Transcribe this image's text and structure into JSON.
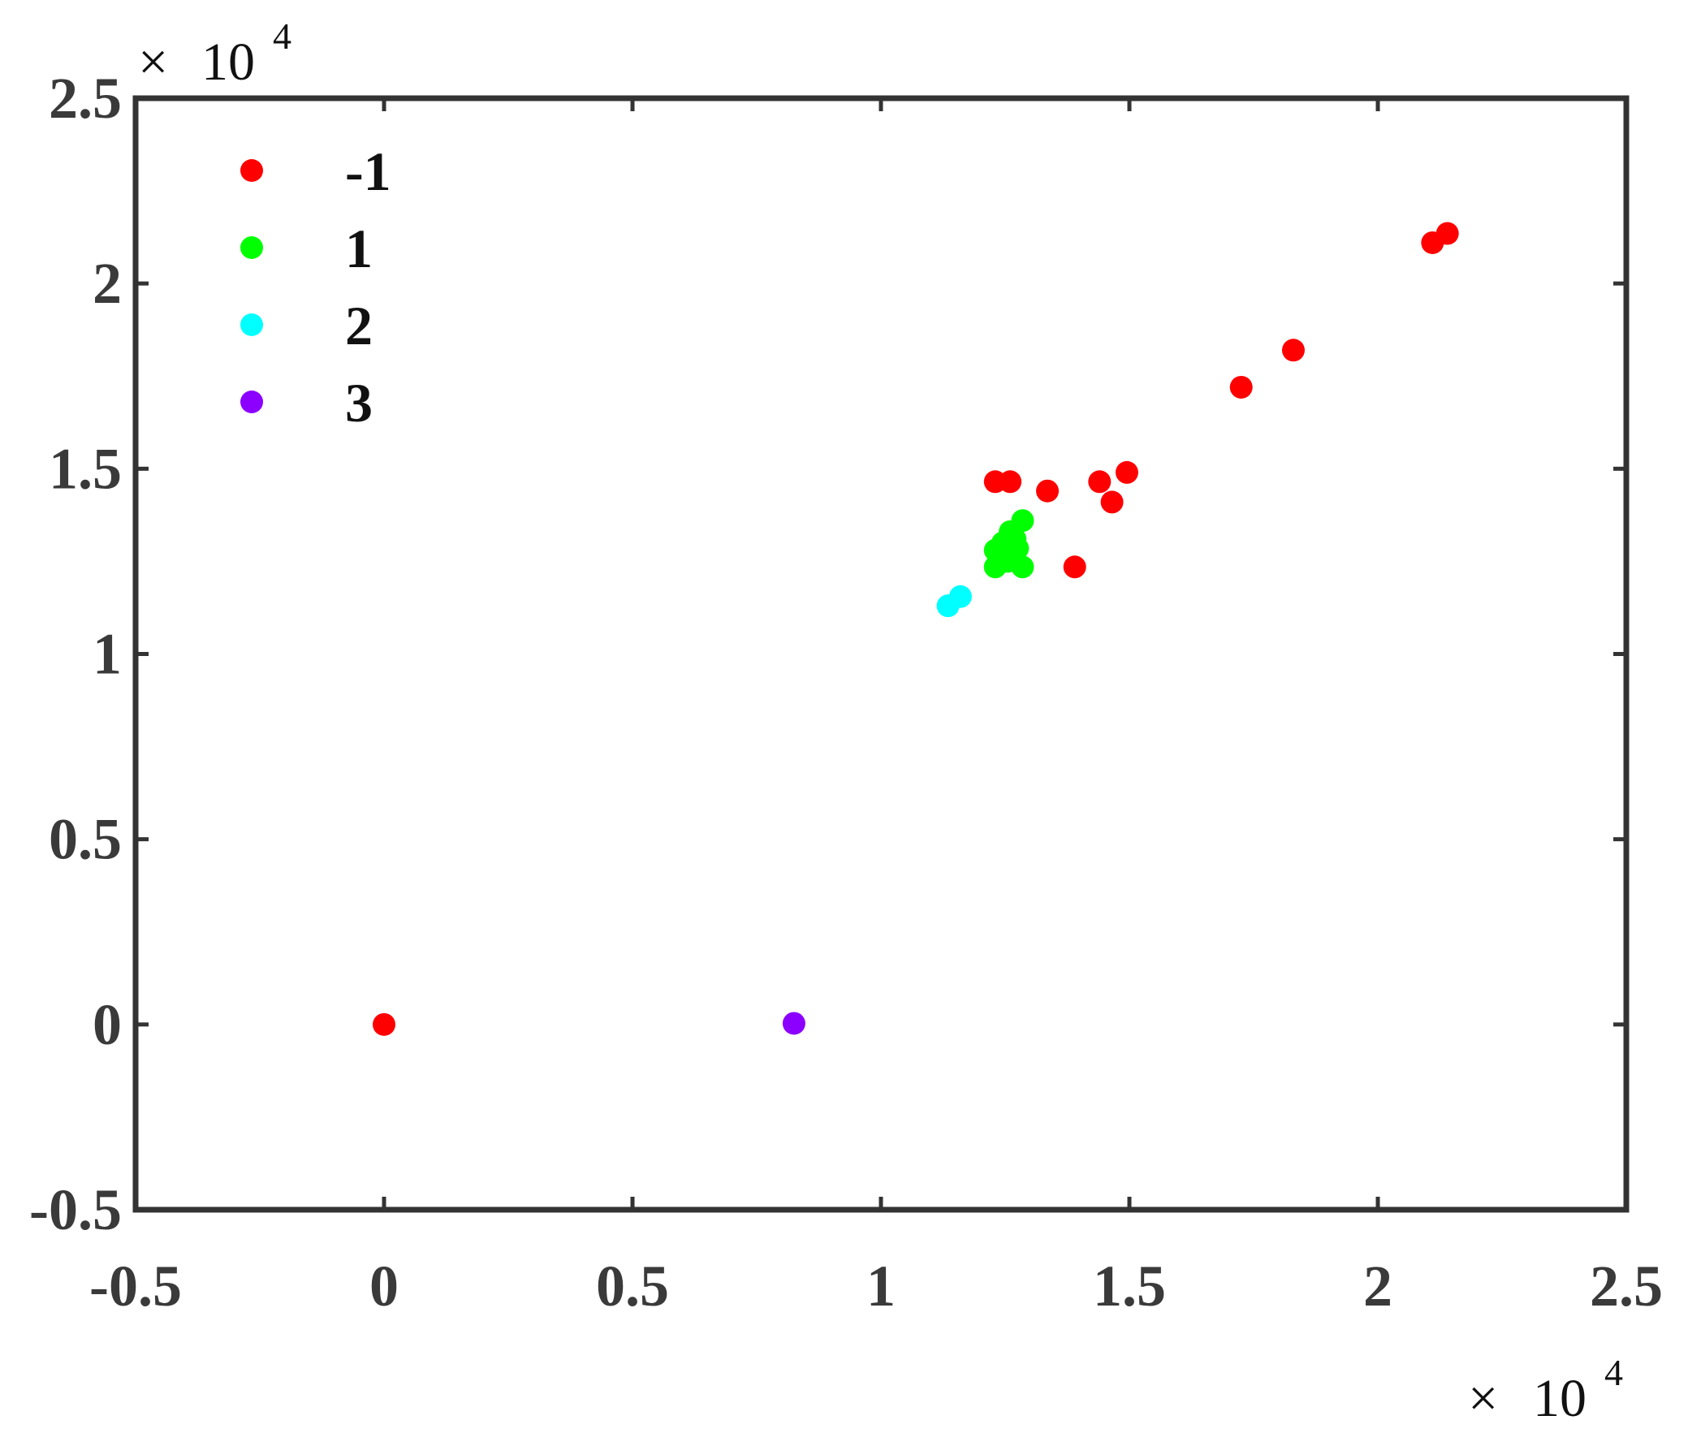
{
  "chart_data": {
    "type": "scatter",
    "title": "",
    "xlabel": "",
    "ylabel": "",
    "xlim": [
      -0.5,
      2.5
    ],
    "ylim": [
      -0.5,
      2.5
    ],
    "x_ticks": [
      -0.5,
      0,
      0.5,
      1,
      1.5,
      2,
      2.5
    ],
    "y_ticks": [
      -0.5,
      0,
      0.5,
      1,
      1.5,
      2,
      2.5
    ],
    "x_tick_labels": [
      "-0.5",
      "0",
      "0.5",
      "1",
      "1.5",
      "2",
      "2.5"
    ],
    "y_tick_labels": [
      "-0.5",
      "0",
      "0.5",
      "1",
      "1.5",
      "2",
      "2.5"
    ],
    "x_multiplier": {
      "times": "×",
      "base": "10",
      "exponent": "4"
    },
    "y_multiplier": {
      "times": "×",
      "base": "10",
      "exponent": "4"
    },
    "grid": false,
    "legend": {
      "position": "top-left"
    },
    "series": [
      {
        "name": "-1",
        "color": "#ff0000",
        "points": [
          [
            0.0,
            0.0
          ],
          [
            1.23,
            1.465
          ],
          [
            1.26,
            1.465
          ],
          [
            1.335,
            1.44
          ],
          [
            1.39,
            1.235
          ],
          [
            1.44,
            1.465
          ],
          [
            1.465,
            1.41
          ],
          [
            1.495,
            1.49
          ],
          [
            1.725,
            1.72
          ],
          [
            1.83,
            1.82
          ],
          [
            2.11,
            2.11
          ],
          [
            2.14,
            2.135
          ]
        ]
      },
      {
        "name": "1",
        "color": "#00ff00",
        "points": [
          [
            1.23,
            1.235
          ],
          [
            1.23,
            1.28
          ],
          [
            1.255,
            1.25
          ],
          [
            1.26,
            1.33
          ],
          [
            1.275,
            1.285
          ],
          [
            1.285,
            1.235
          ],
          [
            1.285,
            1.36
          ],
          [
            1.245,
            1.3
          ],
          [
            1.27,
            1.31
          ]
        ]
      },
      {
        "name": "2",
        "color": "#00ffff",
        "points": [
          [
            1.135,
            1.13
          ],
          [
            1.16,
            1.155
          ]
        ]
      },
      {
        "name": "3",
        "color": "#8b00ff",
        "points": [
          [
            0.825,
            0.003
          ]
        ]
      }
    ]
  }
}
